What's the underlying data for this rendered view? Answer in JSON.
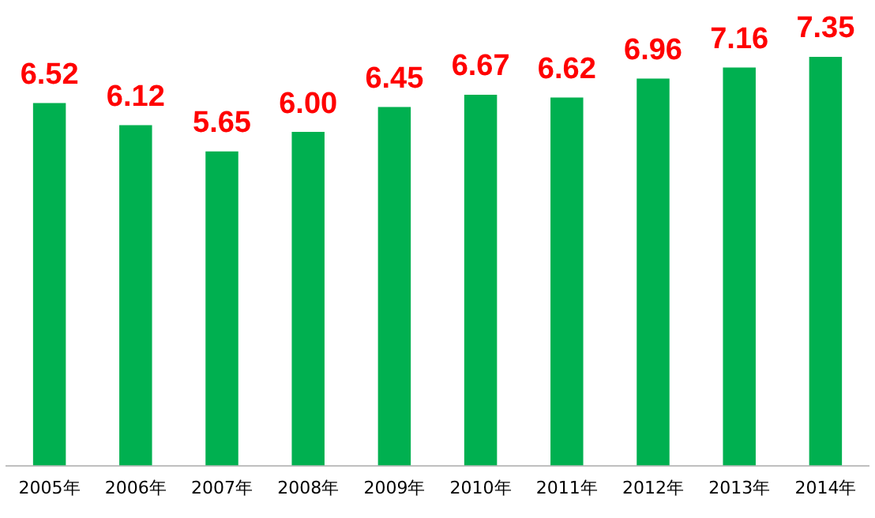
{
  "chart_data": {
    "type": "bar",
    "categories": [
      "2005年",
      "2006年",
      "2007年",
      "2008年",
      "2009年",
      "2010年",
      "2011年",
      "2012年",
      "2013年",
      "2014年"
    ],
    "values": [
      6.52,
      6.12,
      5.65,
      6.0,
      6.45,
      6.67,
      6.62,
      6.96,
      7.16,
      7.35
    ],
    "value_labels": [
      "6.52",
      "6.12",
      "5.65",
      "6.00",
      "6.45",
      "6.67",
      "6.62",
      "6.96",
      "7.16",
      "7.35"
    ],
    "color": "#00b050",
    "grid": false,
    "legend": false,
    "tick_labels": "x"
  }
}
